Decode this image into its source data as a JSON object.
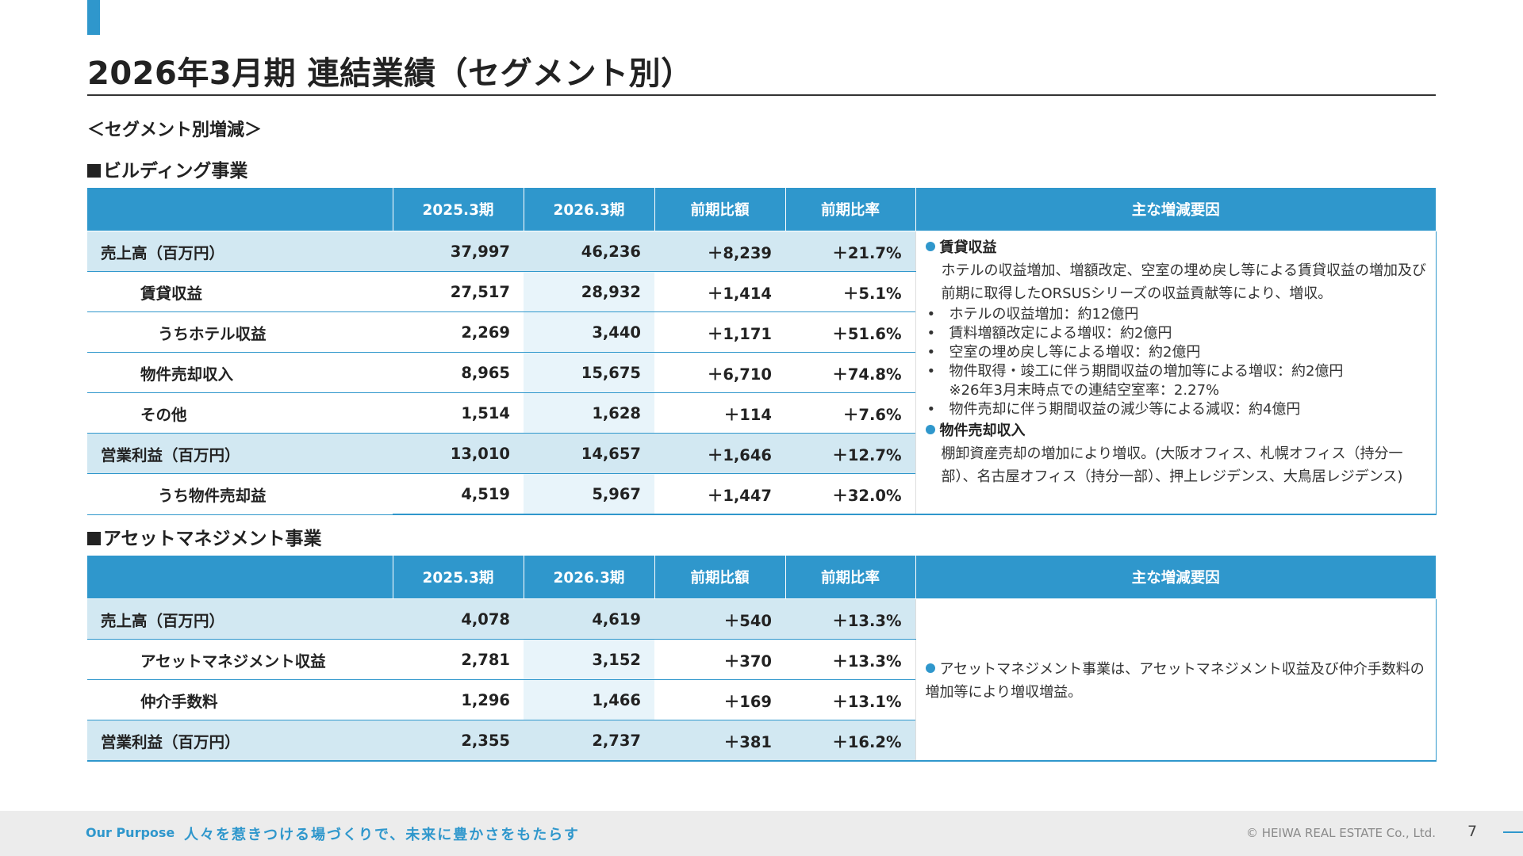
{
  "title": "2026年3月期 連結業績（セグメント別）",
  "subheading": "＜セグメント別増減＞",
  "columns": [
    "",
    "2025.3期",
    "2026.3期",
    "前期比額",
    "前期比率",
    "主な増減要因"
  ],
  "building": {
    "section_title": "ビルディング事業",
    "rows": [
      {
        "label": "売上高（百万円）",
        "prev": "37,997",
        "cur": "46,236",
        "diff": "＋8,239",
        "rate": "＋21.7%"
      },
      {
        "label": "賃貸収益",
        "prev": "27,517",
        "cur": "28,932",
        "diff": "＋1,414",
        "rate": "＋5.1%"
      },
      {
        "label": "うちホテル収益",
        "prev": "2,269",
        "cur": "3,440",
        "diff": "＋1,171",
        "rate": "＋51.6%"
      },
      {
        "label": "物件売却収入",
        "prev": "8,965",
        "cur": "15,675",
        "diff": "＋6,710",
        "rate": "＋74.8%"
      },
      {
        "label": "その他",
        "prev": "1,514",
        "cur": "1,628",
        "diff": "＋114",
        "rate": "＋7.6%"
      },
      {
        "label": "営業利益（百万円）",
        "prev": "13,010",
        "cur": "14,657",
        "diff": "＋1,646",
        "rate": "＋12.7%"
      },
      {
        "label": "うち物件売却益",
        "prev": "4,519",
        "cur": "5,967",
        "diff": "＋1,447",
        "rate": "＋32.0%"
      }
    ],
    "factors": {
      "rental_heading": "賃貸収益",
      "rental_text": "ホテルの収益増加、増額改定、空室の埋め戻し等による賃貸収益の増加及び前期に取得したORSUSシリーズの収益貢献等により、増収。",
      "bullets": [
        "ホテルの収益増加：約12億円",
        "賃料増額改定による増収：約2億円",
        "空室の埋め戻し等による増収：約2億円",
        "物件取得・竣工に伴う期間収益の増加等による増収：約2億円"
      ],
      "note": "※26年3月末時点での連結空室率：2.27%",
      "bullet_last": "物件売却に伴う期間収益の減少等による減収：約4億円",
      "sale_heading": "物件売却収入",
      "sale_text": "棚卸資産売却の増加により増収。(大阪オフィス、札幌オフィス（持分一部）、名古屋オフィス（持分一部）、押上レジデンス、大鳥居レジデンス)"
    }
  },
  "asset_management": {
    "section_title": "アセットマネジメント事業",
    "rows": [
      {
        "label": "売上高（百万円）",
        "prev": "4,078",
        "cur": "4,619",
        "diff": "＋540",
        "rate": "＋13.3%"
      },
      {
        "label": "アセットマネジメント収益",
        "prev": "2,781",
        "cur": "3,152",
        "diff": "＋370",
        "rate": "＋13.3%"
      },
      {
        "label": "仲介手数料",
        "prev": "1,296",
        "cur": "1,466",
        "diff": "＋169",
        "rate": "＋13.1%"
      },
      {
        "label": "営業利益（百万円）",
        "prev": "2,355",
        "cur": "2,737",
        "diff": "＋381",
        "rate": "＋16.2%"
      }
    ],
    "factors": {
      "text": "アセットマネジメント事業は、アセットマネジメント収益及び仲介手数料の増加等により増収増益。"
    }
  },
  "footer": {
    "purpose_label": "Our Purpose",
    "slogan": "人々を惹きつける場づくりで、未来に豊かさをもたらす",
    "copyright": "© HEIWA REAL ESTATE Co., Ltd.",
    "page_number": "7"
  },
  "colors": {
    "accent": "#2f97cc",
    "header_fill": "#2f97cc",
    "major_row_fill": "#d2e8f2",
    "current_column_fill": "#e8f4fa",
    "footer_fill": "#ececec"
  }
}
